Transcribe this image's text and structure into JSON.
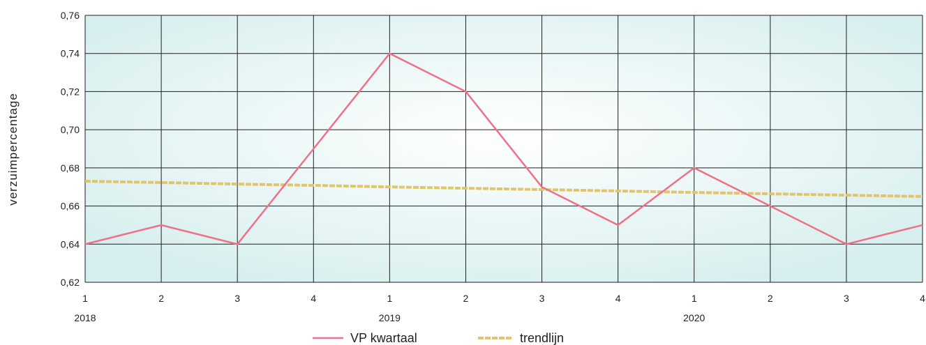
{
  "chart_data": {
    "type": "line",
    "ylabel": "verzuimpercentage",
    "ylim": [
      0.62,
      0.76
    ],
    "yticks": [
      "0,62",
      "0,64",
      "0,66",
      "0,68",
      "0,70",
      "0,72",
      "0,74",
      "0,76"
    ],
    "yticks_values": [
      0.62,
      0.64,
      0.66,
      0.68,
      0.7,
      0.72,
      0.74,
      0.76
    ],
    "categories": [
      "1",
      "2",
      "3",
      "4",
      "1",
      "2",
      "3",
      "4",
      "1",
      "2",
      "3",
      "4"
    ],
    "year_labels": [
      {
        "label": "2018",
        "category_index": 0
      },
      {
        "label": "2019",
        "category_index": 4
      },
      {
        "label": "2020",
        "category_index": 8
      }
    ],
    "grid": true,
    "legend_position": "bottom",
    "series": [
      {
        "name": "VP kwartaal",
        "color": "#f07088",
        "style": "solid",
        "values": [
          0.64,
          0.65,
          0.64,
          0.69,
          0.74,
          0.72,
          0.67,
          0.65,
          0.68,
          0.66,
          0.64,
          0.65
        ]
      },
      {
        "name": "trendlijn",
        "color": "#e2c46a",
        "style": "dashed",
        "values": [
          0.673,
          0.6723,
          0.6715,
          0.6708,
          0.67,
          0.6693,
          0.6686,
          0.6679,
          0.6671,
          0.6664,
          0.6657,
          0.665
        ]
      }
    ]
  },
  "colors": {
    "plot_center": "#ffffff",
    "plot_edge": "#d6eeee",
    "grid": "#1f1f1f"
  }
}
